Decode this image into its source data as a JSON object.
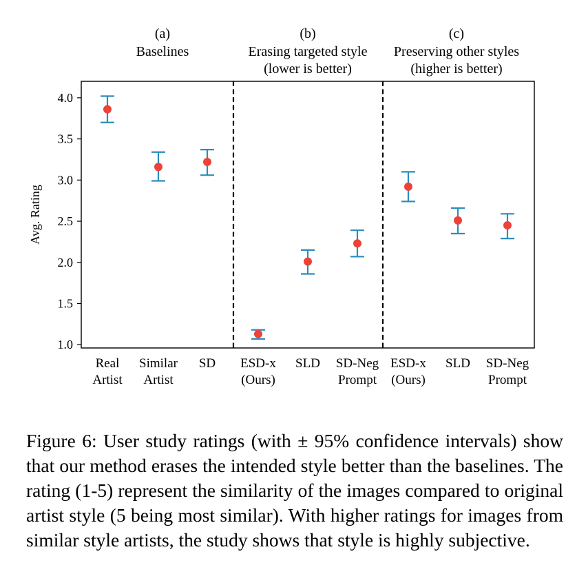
{
  "chart_data": {
    "type": "scatter",
    "ylabel": "Avg. Rating",
    "ylim": [
      0.96,
      4.2
    ],
    "yticks": [
      "1.0",
      "1.5",
      "2.0",
      "2.5",
      "3.0",
      "3.5",
      "4.0"
    ],
    "error_bars": "± 95% confidence intervals",
    "panels": [
      {
        "letter": "(a)",
        "title_lines": [
          "Baselines"
        ]
      },
      {
        "letter": "(b)",
        "title_lines": [
          "Erasing targeted style",
          "(lower is better)"
        ]
      },
      {
        "letter": "(c)",
        "title_lines": [
          "Preserving other styles",
          "(higher is better)"
        ]
      }
    ],
    "points": [
      {
        "label_lines": [
          "Real",
          "Artist"
        ],
        "value": 3.86,
        "ci_low": 3.7,
        "ci_high": 4.02
      },
      {
        "label_lines": [
          "Similar",
          "Artist"
        ],
        "value": 3.16,
        "ci_low": 2.99,
        "ci_high": 3.34
      },
      {
        "label_lines": [
          "SD"
        ],
        "value": 3.22,
        "ci_low": 3.06,
        "ci_high": 3.37
      },
      {
        "label_lines": [
          "ESD-x",
          "(Ours)"
        ],
        "value": 1.13,
        "ci_low": 1.07,
        "ci_high": 1.18
      },
      {
        "label_lines": [
          "SLD"
        ],
        "value": 2.01,
        "ci_low": 1.86,
        "ci_high": 2.15
      },
      {
        "label_lines": [
          "SD-Neg",
          "Prompt"
        ],
        "value": 2.23,
        "ci_low": 2.07,
        "ci_high": 2.39
      },
      {
        "label_lines": [
          "ESD-x",
          "(Ours)"
        ],
        "value": 2.92,
        "ci_low": 2.74,
        "ci_high": 3.1
      },
      {
        "label_lines": [
          "SLD"
        ],
        "value": 2.51,
        "ci_low": 2.35,
        "ci_high": 2.66
      },
      {
        "label_lines": [
          "SD-Neg",
          "Prompt"
        ],
        "value": 2.45,
        "ci_low": 2.29,
        "ci_high": 2.59
      }
    ],
    "colors": {
      "point": "#ef4136",
      "error_bar": "#2b8cbe",
      "divider": "#000000"
    }
  },
  "caption": "Figure 6: User study ratings (with ± 95% confidence intervals) show that our method erases the intended style better than the baselines. The rating (1-5) represent the similarity of the images compared to original artist style (5 being most similar). With higher ratings for images from similar style artists, the study shows that style is highly subjective."
}
